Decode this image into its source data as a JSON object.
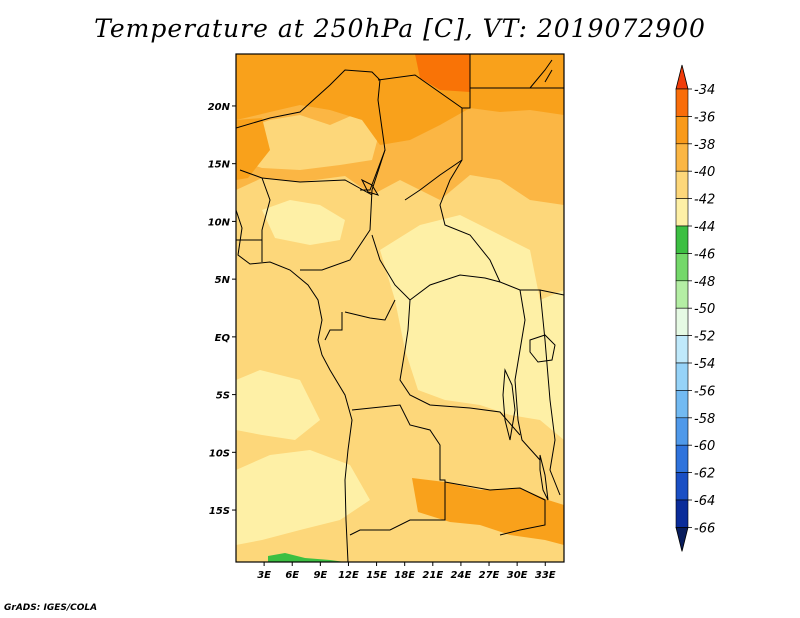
{
  "title": "Temperature at 250hPa [C], VT: 2019072900",
  "credit": "GrADS: IGES/COLA",
  "map": {
    "lat_ticks": [
      "20N",
      "15N",
      "10N",
      "5N",
      "EQ",
      "5S",
      "10S",
      "15S"
    ],
    "lon_ticks": [
      "3E",
      "6E",
      "9E",
      "12E",
      "15E",
      "18E",
      "21E",
      "24E",
      "27E",
      "30E",
      "33E"
    ],
    "lon_range": [
      0,
      35
    ],
    "lat_range": [
      -19.5,
      24.5
    ],
    "field_colors": {
      "c_36_34": "#f97306",
      "c_38_36": "#f9a11b",
      "c_40_38": "#fbb644",
      "c_42_40": "#fdd77a",
      "c_44_42": "#fef0a6",
      "c_46_44": "#3cbf42"
    }
  },
  "colorbar": {
    "levels": [
      "-34",
      "-36",
      "-38",
      "-40",
      "-42",
      "-44",
      "-46",
      "-48",
      "-50",
      "-52",
      "-54",
      "-56",
      "-58",
      "-60",
      "-62",
      "-64",
      "-66"
    ],
    "colors": [
      "#f03c0a",
      "#f96d0a",
      "#f99a1a",
      "#fbb644",
      "#fdd77a",
      "#fef0a6",
      "#3cbf42",
      "#74d86a",
      "#b4eea4",
      "#e6fae4",
      "#bfe9fb",
      "#96d3f8",
      "#72baf2",
      "#4f99ea",
      "#2f73dc",
      "#1a4fc4",
      "#0a2c9a",
      "#081c5c"
    ]
  }
}
